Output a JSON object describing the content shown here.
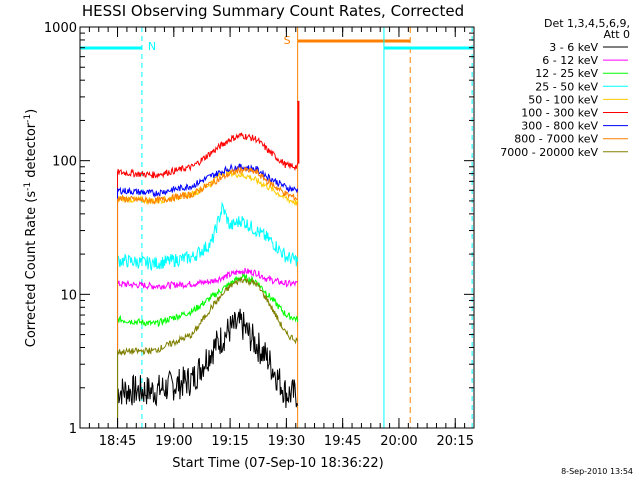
{
  "chart_data": {
    "type": "line",
    "title": "HESSI Observing Summary Count Rates, Corrected",
    "xlabel": "Start Time (07-Sep-10 18:36:22)",
    "ylabel": "Corrected Count Rate (s",
    "ylabel_sup1": "-1",
    "ylabel_mid": " detector",
    "ylabel_sup2": "-1",
    "ylabel_end": ")",
    "y_scale": "log",
    "ylim": [
      1,
      1000
    ],
    "y_ticks": [
      {
        "value": 1,
        "label": "1"
      },
      {
        "value": 10,
        "label": "10"
      },
      {
        "value": 100,
        "label": "100"
      },
      {
        "value": 1000,
        "label": "1000"
      }
    ],
    "xlim_minutes": [
      1115,
      1220
    ],
    "x_ticks": [
      {
        "label": "18:45",
        "minutes": 1125
      },
      {
        "label": "19:00",
        "minutes": 1140
      },
      {
        "label": "19:15",
        "minutes": 1155
      },
      {
        "label": "19:30",
        "minutes": 1170
      },
      {
        "label": "19:45",
        "minutes": 1185
      },
      {
        "label": "20:00",
        "minutes": 1200
      },
      {
        "label": "20:15",
        "minutes": 1215
      }
    ],
    "legend_header": [
      "Det 1,3,4,5,6,9,",
      "Att 0"
    ],
    "series": [
      {
        "name": "3 - 6 keV",
        "color": "#000000",
        "start": 1125,
        "end": 1173,
        "x": [
          1125,
          1135,
          1145,
          1150,
          1155,
          1158,
          1160,
          1165,
          1170,
          1173
        ],
        "y": [
          1.9,
          1.9,
          2.3,
          3.8,
          5.5,
          6.0,
          5.0,
          3.3,
          1.8,
          1.8
        ]
      },
      {
        "name": "6 - 12 keV",
        "color": "#ff00ff",
        "start": 1125,
        "end": 1173,
        "x": [
          1125,
          1135,
          1145,
          1150,
          1155,
          1158,
          1162,
          1165,
          1170,
          1173
        ],
        "y": [
          12,
          11.5,
          12,
          12.5,
          14,
          15,
          14.5,
          13,
          12,
          12
        ]
      },
      {
        "name": "12 - 25 keV",
        "color": "#00ff00",
        "start": 1125,
        "end": 1173,
        "x": [
          1125,
          1135,
          1145,
          1150,
          1155,
          1158,
          1162,
          1165,
          1170,
          1173
        ],
        "y": [
          6.5,
          6,
          7.5,
          9.5,
          12,
          13.5,
          12.5,
          10,
          7,
          6.5
        ]
      },
      {
        "name": "25 - 50 keV",
        "color": "#00ffff",
        "start": 1125,
        "end": 1173,
        "x": [
          1125,
          1135,
          1145,
          1150,
          1153,
          1155,
          1158,
          1162,
          1166,
          1170,
          1173
        ],
        "y": [
          18,
          17,
          19,
          24,
          45,
          32,
          36,
          30,
          25,
          19,
          18
        ]
      },
      {
        "name": "50 - 100 keV",
        "color": "#ffcc00",
        "start": 1125,
        "end": 1173,
        "x": [
          1125,
          1135,
          1145,
          1150,
          1153,
          1156,
          1160,
          1165,
          1170,
          1173
        ],
        "y": [
          52,
          50,
          56,
          68,
          83,
          80,
          76,
          64,
          52,
          48
        ]
      },
      {
        "name": "100 - 300 keV",
        "color": "#ff0000",
        "start": 1125,
        "end": 1173,
        "x": [
          1125,
          1135,
          1145,
          1150,
          1155,
          1158,
          1162,
          1165,
          1170,
          1173
        ],
        "y": [
          82,
          78,
          90,
          115,
          145,
          155,
          145,
          120,
          92,
          90
        ]
      },
      {
        "name": "300 - 800 keV",
        "color": "#0000ff",
        "start": 1125,
        "end": 1173,
        "x": [
          1125,
          1135,
          1145,
          1150,
          1155,
          1158,
          1162,
          1165,
          1170,
          1173
        ],
        "y": [
          60,
          57,
          65,
          77,
          88,
          90,
          86,
          76,
          63,
          60
        ]
      },
      {
        "name": "800 - 7000 keV",
        "color": "#ff8000",
        "start": 1125,
        "end": 1173,
        "x": [
          1125,
          1135,
          1145,
          1150,
          1155,
          1158,
          1162,
          1165,
          1170,
          1173
        ],
        "y": [
          52,
          50,
          56,
          68,
          80,
          86,
          82,
          70,
          56,
          52
        ]
      },
      {
        "name": "7000 - 20000 keV",
        "color": "#808000",
        "start": 1125,
        "end": 1173,
        "x": [
          1125,
          1135,
          1145,
          1150,
          1155,
          1158,
          1162,
          1165,
          1170,
          1173
        ],
        "y": [
          3.7,
          3.8,
          5,
          8,
          11.5,
          13,
          12,
          9,
          5,
          4.5
        ]
      }
    ],
    "flags": {
      "N_label": "N",
      "S_label": "S"
    },
    "footer": "8-Sep-2010 13:54"
  }
}
